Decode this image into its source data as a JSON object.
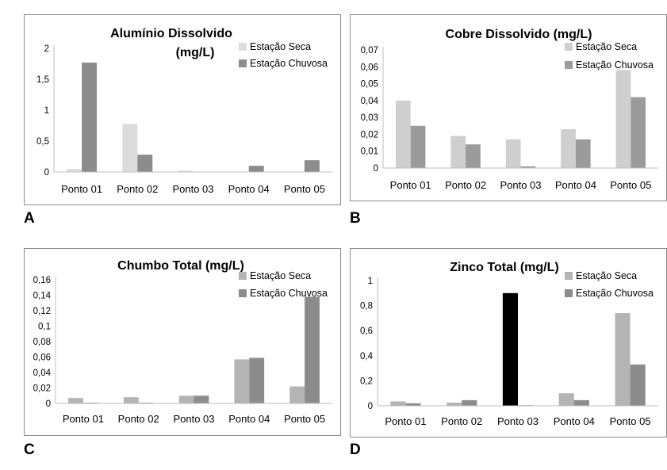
{
  "chart_data": [
    {
      "type": "bar",
      "panel_label": "A",
      "title": "Alumínio Dissolvido",
      "title_line2": "(mg/L)",
      "categories": [
        "Ponto 01",
        "Ponto 02",
        "Ponto 03",
        "Ponto 04",
        "Ponto 05"
      ],
      "yticks": [
        0,
        0.5,
        1,
        1.5,
        2
      ],
      "ytick_labels": [
        "0",
        "0,5",
        "1",
        "1,5",
        "2"
      ],
      "ylim": [
        0,
        2
      ],
      "legend_position": "top-right",
      "series": [
        {
          "name": "Estação Seca",
          "color": "#dcdcdc",
          "values": [
            0.05,
            0.78,
            0.02,
            0.0,
            0.0
          ]
        },
        {
          "name": "Estação Chuvosa",
          "color": "#8c8c8c",
          "values": [
            1.77,
            0.28,
            0.0,
            0.1,
            0.19
          ]
        }
      ]
    },
    {
      "type": "bar",
      "panel_label": "B",
      "title": "Cobre Dissolvido  (mg/L)",
      "title_line2": "",
      "categories": [
        "Ponto 01",
        "Ponto 02",
        "Ponto 03",
        "Ponto 04",
        "Ponto 05"
      ],
      "yticks": [
        0,
        0.01,
        0.02,
        0.03,
        0.04,
        0.05,
        0.06,
        0.07
      ],
      "ytick_labels": [
        "0",
        "0,01",
        "0,02",
        "0,03",
        "0,04",
        "0,05",
        "0,06",
        "0,07"
      ],
      "ylim": [
        0,
        0.07
      ],
      "legend_position": "top-right",
      "series": [
        {
          "name": "Estação Seca",
          "color": "#cfcfcf",
          "values": [
            0.04,
            0.019,
            0.017,
            0.023,
            0.058
          ]
        },
        {
          "name": "Estação Chuvosa",
          "color": "#9b9b9b",
          "values": [
            0.025,
            0.014,
            0.001,
            0.017,
            0.042
          ]
        }
      ]
    },
    {
      "type": "bar",
      "panel_label": "C",
      "title": "Chumbo Total  (mg/L)",
      "title_line2": "",
      "categories": [
        "Ponto 01",
        "Ponto 02",
        "Ponto 03",
        "Ponto 04",
        "Ponto 05"
      ],
      "yticks": [
        0,
        0.02,
        0.04,
        0.06,
        0.08,
        0.1,
        0.12,
        0.14,
        0.16
      ],
      "ytick_labels": [
        "0",
        "0,02",
        "0,04",
        "0,06",
        "0,08",
        "0,1",
        "0,12",
        "0,14",
        "0,16"
      ],
      "ylim": [
        0,
        0.16
      ],
      "legend_position": "top-right",
      "series": [
        {
          "name": "Estação Seca",
          "color": "#b4b4b4",
          "values": [
            0.007,
            0.008,
            0.01,
            0.057,
            0.022
          ]
        },
        {
          "name": "Estação Chuvosa",
          "color": "#8c8c8c",
          "values": [
            0.001,
            0.001,
            0.01,
            0.059,
            0.138
          ]
        }
      ]
    },
    {
      "type": "bar",
      "panel_label": "D",
      "title": "Zinco Total  (mg/L)",
      "title_line2": "",
      "categories": [
        "Ponto 01",
        "Ponto 02",
        "Ponto 03",
        "Ponto 04",
        "Ponto 05"
      ],
      "yticks": [
        0,
        0.2,
        0.4,
        0.6,
        0.8,
        1
      ],
      "ytick_labels": [
        "0",
        "0,2",
        "0,4",
        "0,6",
        "0,8",
        "1"
      ],
      "ylim": [
        0,
        1
      ],
      "legend_position": "top-right",
      "highlight_bar": {
        "series": 0,
        "index": 2,
        "color": "#000000"
      },
      "series": [
        {
          "name": "Estação Seca",
          "color": "#b4b4b4",
          "values": [
            0.035,
            0.025,
            0.9,
            0.1,
            0.74
          ]
        },
        {
          "name": "Estação Chuvosa",
          "color": "#8c8c8c",
          "values": [
            0.02,
            0.045,
            0.005,
            0.045,
            0.33
          ]
        }
      ]
    }
  ]
}
